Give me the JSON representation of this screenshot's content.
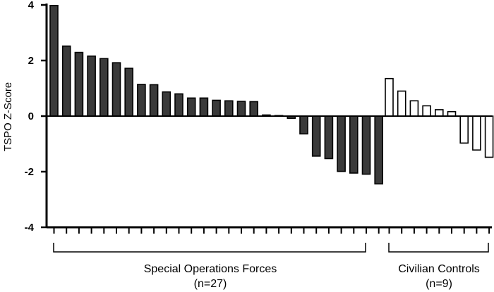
{
  "chart_data": {
    "type": "bar",
    "title": "",
    "xlabel": "",
    "ylabel": "TSPO Z-Score",
    "ylim": [
      -4,
      4
    ],
    "yticks": [
      "-4",
      "-2",
      "0",
      "2",
      "4"
    ],
    "grid": false,
    "legend": "none",
    "series": [
      {
        "group_label": "Special Operations Forces",
        "group_n": "(n=27)",
        "fill": "#3a3a3a",
        "stroke": "#000000",
        "values": [
          3.98,
          2.52,
          2.29,
          2.16,
          2.07,
          1.92,
          1.72,
          1.14,
          1.13,
          0.87,
          0.8,
          0.65,
          0.65,
          0.57,
          0.55,
          0.53,
          0.52,
          0.04,
          0.02,
          -0.08,
          -0.64,
          -1.44,
          -1.53,
          -1.99,
          -2.05,
          -2.09,
          -2.44
        ]
      },
      {
        "group_label": "Civilian Controls",
        "group_n": "(n=9)",
        "fill": "#ffffff",
        "stroke": "#000000",
        "values": [
          1.35,
          0.9,
          0.55,
          0.37,
          0.23,
          0.16,
          -0.97,
          -1.22,
          -1.48
        ]
      }
    ]
  }
}
